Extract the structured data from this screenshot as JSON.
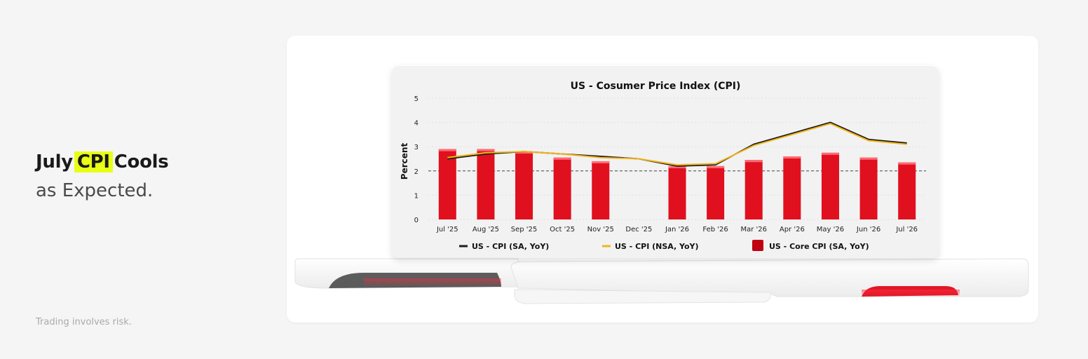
{
  "headline": {
    "part1": "July",
    "highlight": "CPI",
    "part2": "Cools",
    "subline": "as Expected."
  },
  "disclaimer": "Trading involves risk.",
  "colors": {
    "highlight": "#e9ff16",
    "bar": "#e0101f",
    "sa_line": "#1e1e1e",
    "nsa_line": "#f2b51b",
    "legend_core": "#c00010"
  },
  "chart_data": {
    "type": "bar",
    "title": "US - Cosumer Price Index (CPI)",
    "xlabel": "",
    "ylabel": "Percent",
    "ylim": [
      0,
      5
    ],
    "yticks": [
      0,
      1,
      2,
      3,
      4,
      5
    ],
    "grid": true,
    "reference_line": 2,
    "legend_position": "bottom",
    "categories": [
      "Jul '25",
      "Aug '25",
      "Sep '25",
      "Oct '25",
      "Nov '25",
      "Dec '25",
      "Jan '26",
      "Feb '26",
      "Mar '26",
      "Apr '26",
      "May '26",
      "Jun '26",
      "Jul '26"
    ],
    "series": [
      {
        "name": "US - CPI (SA, YoY)",
        "type": "line",
        "values": [
          2.5,
          2.7,
          2.8,
          2.7,
          2.6,
          2.5,
          2.2,
          2.25,
          3.1,
          3.55,
          4.0,
          3.3,
          3.15
        ]
      },
      {
        "name": "US - CPI (NSA, YoY)",
        "type": "line",
        "values": [
          2.55,
          2.75,
          2.8,
          2.7,
          2.55,
          2.5,
          2.25,
          2.3,
          3.05,
          3.5,
          3.95,
          3.25,
          3.1
        ]
      },
      {
        "name": "US - Core CPI (SA, YoY)",
        "type": "bar",
        "values": [
          2.9,
          2.9,
          2.8,
          2.55,
          2.4,
          null,
          2.2,
          2.2,
          2.45,
          2.6,
          2.75,
          2.55,
          2.35
        ]
      }
    ]
  }
}
